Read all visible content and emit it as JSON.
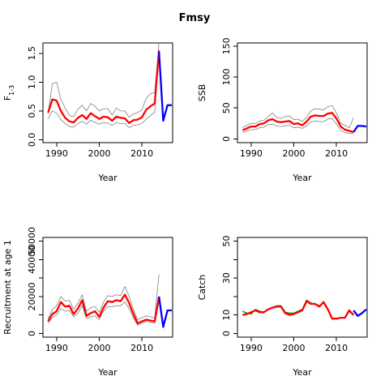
{
  "title": "Fmsy",
  "colors": {
    "median": "#ff0000",
    "bounds": "#808080",
    "projection": "#0000ff",
    "axis": "#000000"
  },
  "chart_data": [
    {
      "type": "line",
      "ylabel": "F",
      "ylabel_sub": "1-3",
      "xlabel": "Year",
      "xlim": [
        1986.8,
        2017.2
      ],
      "ylim": [
        -0.05,
        1.68
      ],
      "xticks": [
        1990,
        2000,
        2010
      ],
      "yticks": [
        0.0,
        0.5,
        1.0,
        1.5
      ],
      "ytick_labels": [
        "0.0",
        "0.5",
        "1.0",
        "1.5"
      ],
      "x": [
        1988,
        1989,
        1990,
        1991,
        1992,
        1993,
        1994,
        1995,
        1996,
        1997,
        1998,
        1999,
        2000,
        2001,
        2002,
        2003,
        2004,
        2005,
        2006,
        2007,
        2008,
        2009,
        2010,
        2011,
        2012,
        2013,
        2014
      ],
      "series": [
        {
          "role": "upper",
          "values": [
            0.45,
            0.97,
            1.0,
            0.7,
            0.55,
            0.42,
            0.4,
            0.53,
            0.6,
            0.5,
            0.63,
            0.58,
            0.5,
            0.54,
            0.54,
            0.43,
            0.55,
            0.5,
            0.5,
            0.39,
            0.45,
            0.47,
            0.52,
            0.72,
            0.8,
            0.82,
            1.68
          ]
        },
        {
          "role": "median",
          "values": [
            0.47,
            0.7,
            0.68,
            0.5,
            0.38,
            0.32,
            0.3,
            0.38,
            0.43,
            0.36,
            0.46,
            0.41,
            0.36,
            0.4,
            0.39,
            0.33,
            0.4,
            0.38,
            0.37,
            0.29,
            0.34,
            0.35,
            0.39,
            0.52,
            0.58,
            0.63,
            1.55
          ]
        },
        {
          "role": "lower",
          "values": [
            0.36,
            0.5,
            0.46,
            0.35,
            0.28,
            0.23,
            0.22,
            0.28,
            0.32,
            0.27,
            0.34,
            0.3,
            0.27,
            0.3,
            0.29,
            0.25,
            0.3,
            0.28,
            0.28,
            0.21,
            0.25,
            0.26,
            0.28,
            0.36,
            0.42,
            0.48,
            1.55
          ]
        }
      ],
      "projection": {
        "x": [
          2014,
          2015,
          2016,
          2017
        ],
        "values": [
          1.53,
          0.33,
          0.6,
          0.6
        ]
      }
    },
    {
      "type": "line",
      "ylabel": "SSB",
      "xlabel": "Year",
      "xlim": [
        1986.8,
        2017.2
      ],
      "ylim": [
        -6,
        155
      ],
      "xticks": [
        1990,
        2000,
        2010
      ],
      "yticks": [
        0,
        50,
        100,
        150
      ],
      "ytick_labels": [
        "0",
        "50",
        "100",
        "150"
      ],
      "x": [
        1988,
        1989,
        1990,
        1991,
        1992,
        1993,
        1994,
        1995,
        1996,
        1997,
        1998,
        1999,
        2000,
        2001,
        2002,
        2003,
        2004,
        2005,
        2006,
        2007,
        2008,
        2009,
        2010,
        2011,
        2012,
        2013,
        2014
      ],
      "series": [
        {
          "role": "upper",
          "values": [
            18,
            22,
            25,
            25,
            29,
            30,
            36,
            42,
            35,
            33,
            36,
            37,
            31,
            32,
            28,
            35,
            45,
            49,
            48,
            47,
            52,
            54,
            42,
            25,
            22,
            18,
            34
          ]
        },
        {
          "role": "median",
          "values": [
            14,
            17,
            20,
            20,
            24,
            25,
            30,
            32,
            28,
            27,
            28,
            29,
            24,
            25,
            22,
            28,
            36,
            38,
            37,
            37,
            41,
            42,
            33,
            20,
            15,
            13,
            11
          ]
        },
        {
          "role": "lower",
          "values": [
            10,
            13,
            15,
            15,
            18,
            19,
            23,
            24,
            21,
            20,
            21,
            22,
            18,
            19,
            17,
            21,
            27,
            29,
            28,
            28,
            32,
            33,
            24,
            14,
            10,
            9,
            8
          ]
        }
      ],
      "projection": {
        "x": [
          2014,
          2015,
          2016,
          2017
        ],
        "values": [
          11,
          21,
          21,
          20
        ]
      }
    },
    {
      "type": "line",
      "ylabel": "Recruitment at age 1",
      "xlabel": "Year",
      "xlim": [
        1986.8,
        2017.2
      ],
      "ylim": [
        -2000,
        52000
      ],
      "xticks": [
        1990,
        2000,
        2010
      ],
      "yticks": [
        0,
        10000,
        20000,
        30000,
        40000,
        50000
      ],
      "ytick_labels": [
        "0",
        "",
        "20000",
        "",
        "40000",
        "50000"
      ],
      "x": [
        1988,
        1989,
        1990,
        1991,
        1992,
        1993,
        1994,
        1995,
        1996,
        1997,
        1998,
        1999,
        2000,
        2001,
        2002,
        2003,
        2004,
        2005,
        2006,
        2007,
        2008,
        2009,
        2010,
        2011,
        2012,
        2013,
        2014
      ],
      "series": [
        {
          "role": "upper",
          "values": [
            8000,
            13000,
            15000,
            20000,
            17500,
            18000,
            13000,
            16500,
            21000,
            12000,
            14000,
            14500,
            11500,
            17000,
            20500,
            20000,
            21000,
            20500,
            25500,
            20000,
            13000,
            7500,
            8500,
            9500,
            9000,
            8500,
            32000
          ]
        },
        {
          "role": "median",
          "values": [
            6500,
            10500,
            12000,
            17000,
            14500,
            15000,
            10500,
            13500,
            18000,
            9500,
            11000,
            12000,
            9000,
            14000,
            17500,
            17000,
            18000,
            17500,
            21000,
            16500,
            10500,
            5500,
            6500,
            7500,
            7000,
            6500,
            20000
          ]
        },
        {
          "role": "lower",
          "values": [
            5500,
            8500,
            10000,
            13500,
            12000,
            12500,
            9000,
            11000,
            15000,
            8000,
            9000,
            9500,
            7500,
            12000,
            14500,
            14500,
            15000,
            15000,
            17000,
            13500,
            8500,
            4500,
            5500,
            6500,
            6000,
            5500,
            17000
          ]
        }
      ],
      "projection": {
        "x": [
          2014,
          2015,
          2016,
          2017
        ],
        "values": [
          20000,
          3500,
          12500,
          12500
        ]
      }
    },
    {
      "type": "line",
      "ylabel": "Catch",
      "xlabel": "Year",
      "xlim": [
        1986.8,
        2017.2
      ],
      "ylim": [
        -2,
        52
      ],
      "xticks": [
        1990,
        2000,
        2010
      ],
      "yticks": [
        0,
        10,
        20,
        30,
        40,
        50
      ],
      "ytick_labels": [
        "0",
        "10",
        "",
        "30",
        "",
        "50"
      ],
      "x": [
        1988,
        1989,
        1990,
        1991,
        1992,
        1993,
        1994,
        1995,
        1996,
        1997,
        1998,
        1999,
        2000,
        2001,
        2002,
        2003,
        2004,
        2005,
        2006,
        2007,
        2008,
        2009,
        2010,
        2011,
        2012,
        2013,
        2014
      ],
      "series": [
        {
          "role": "observed",
          "color": "#008000",
          "values": [
            12,
            11,
            10.5,
            13,
            12,
            11.5,
            13,
            14,
            15,
            15,
            11.5,
            11,
            11,
            12,
            13,
            18,
            16.5,
            16,
            15,
            16.5,
            13,
            8,
            8,
            8.5,
            8.5,
            12,
            10
          ]
        },
        {
          "role": "median",
          "values": [
            10,
            10.5,
            11.5,
            12.5,
            11.5,
            11.5,
            13,
            14,
            14.5,
            14.5,
            11,
            10,
            10.5,
            11.5,
            12.5,
            17.5,
            16,
            16,
            14.5,
            17,
            13,
            8,
            8,
            8.5,
            8.5,
            12.5,
            10
          ]
        }
      ],
      "projection": {
        "x": [
          2014,
          2015,
          2016,
          2017
        ],
        "values": [
          12.5,
          9.5,
          11,
          13
        ]
      }
    }
  ]
}
